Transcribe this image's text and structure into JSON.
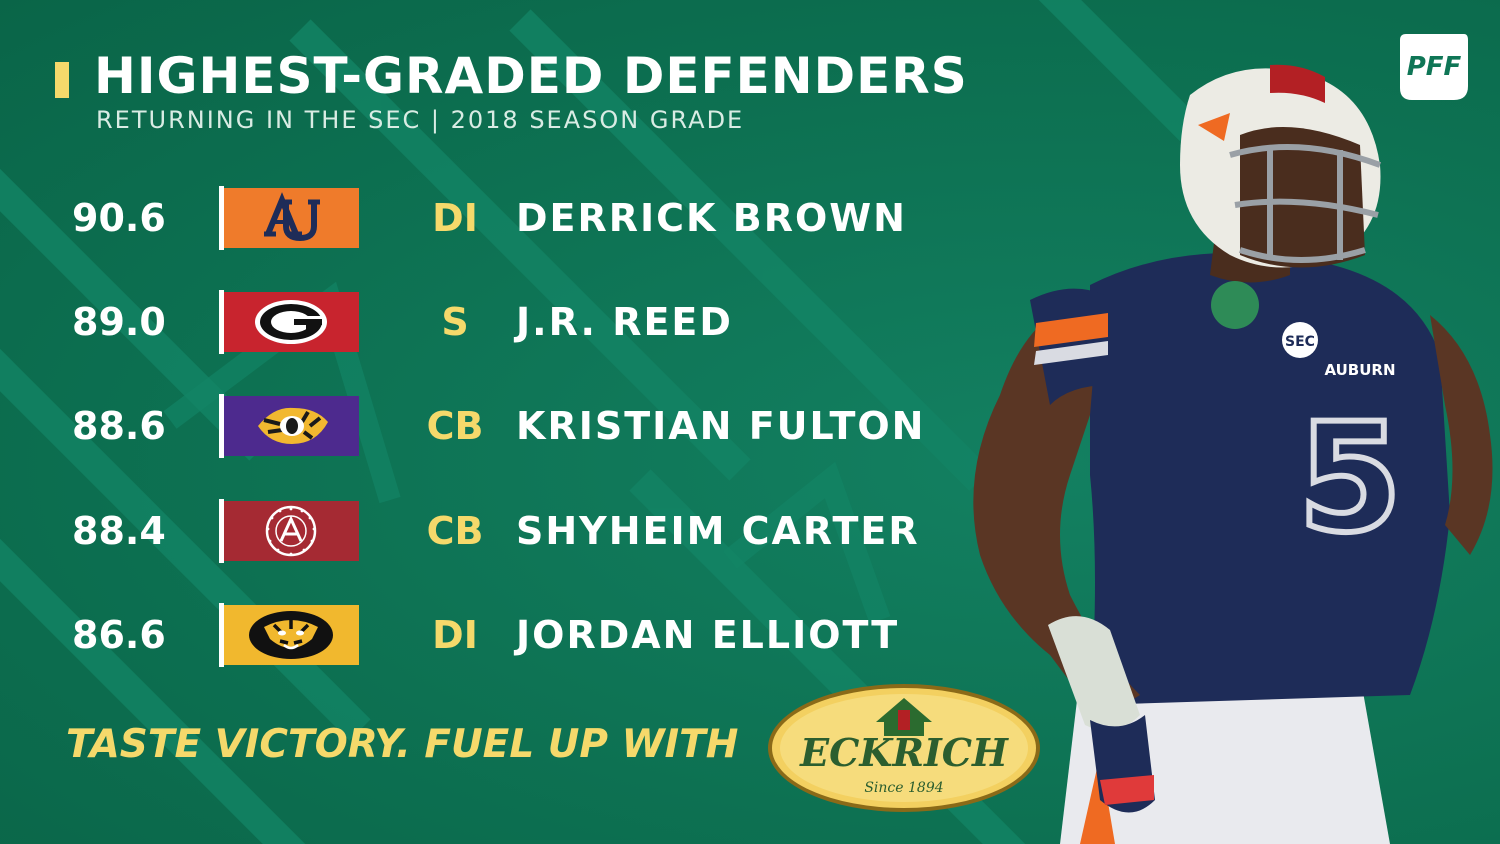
{
  "header": {
    "title": "HIGHEST-GRADED DEFENDERS",
    "subtitle": "RETURNING IN THE SEC | 2018 SEASON GRADE",
    "brand_logo": "PFF"
  },
  "players": [
    {
      "grade": "90.6",
      "team_logo": "auburn-au-logo",
      "team_color": "#ef7b2b",
      "position": "DI",
      "name": "DERRICK BROWN"
    },
    {
      "grade": "89.0",
      "team_logo": "georgia-g-logo",
      "team_color": "#c8242e",
      "position": "S",
      "name": "J.R. REED"
    },
    {
      "grade": "88.6",
      "team_logo": "lsu-tiger-eye-logo",
      "team_color": "#4d2a8e",
      "position": "CB",
      "name": "KRISTIAN FULTON"
    },
    {
      "grade": "88.4",
      "team_logo": "alabama-seal-logo",
      "team_color": "#a52a33",
      "position": "CB",
      "name": "SHYHEIM CARTER"
    },
    {
      "grade": "86.6",
      "team_logo": "missouri-tiger-logo",
      "team_color": "#f1b82e",
      "position": "DI",
      "name": "JORDAN ELLIOTT"
    }
  ],
  "footer": {
    "tagline": "TASTE VICTORY. FUEL UP WITH",
    "sponsor_name": "ECKRICH",
    "sponsor_since": "Since 1894"
  },
  "photo": {
    "jersey_team": "AUBURN",
    "jersey_number": "5",
    "conference_patch": "SEC"
  },
  "colors": {
    "background": "#0f7656",
    "accent": "#f5d96b",
    "text": "#ffffff",
    "jersey_navy": "#1e2c58",
    "jersey_orange": "#ef6a22"
  }
}
